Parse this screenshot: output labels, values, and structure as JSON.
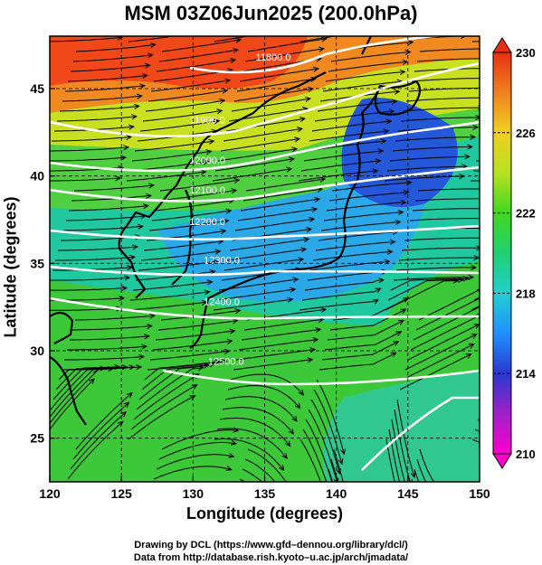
{
  "title": "MSM 03Z06Jun2025 (200.0hPa)",
  "xlabel": "Longitude (degrees)",
  "ylabel": "Latitude  (degrees)",
  "credits": {
    "line1": "Drawing by DCL (https://www.gfd–dennou.org/library/dcl/)",
    "line2": "Data from http://database.rish.kyoto–u.ac.jp/arch/jmadata/"
  },
  "colorbar": {
    "ticks": [
      "230",
      "226",
      "222",
      "218",
      "214",
      "210"
    ],
    "min": 210,
    "max": 230,
    "colors": [
      "#ff00cc",
      "#a020c8",
      "#2838d0",
      "#2090ff",
      "#20d0d0",
      "#20d070",
      "#40d820",
      "#b8e020",
      "#f0d020",
      "#f08020",
      "#e83010"
    ]
  },
  "chart_data": {
    "type": "map",
    "xlim": [
      120,
      150
    ],
    "ylim": [
      22.5,
      48
    ],
    "xticks": [
      "120",
      "125",
      "130",
      "135",
      "140",
      "145",
      "150"
    ],
    "yticks": [
      "25",
      "30",
      "35",
      "40",
      "45"
    ],
    "grid": true,
    "contour_labels": [
      "11800.0",
      "11900.0",
      "12000.0",
      "12100.0",
      "12200.0",
      "12300.0",
      "12400.0",
      "12500.0"
    ],
    "contour_label_positions": [
      {
        "lon": 135.6,
        "lat": 46.6
      },
      {
        "lon": 131.0,
        "lat": 43.0
      },
      {
        "lon": 131.0,
        "lat": 40.7
      },
      {
        "lon": 131.0,
        "lat": 39.0
      },
      {
        "lon": 131.0,
        "lat": 37.2
      },
      {
        "lon": 132.0,
        "lat": 35.0
      },
      {
        "lon": 132.0,
        "lat": 32.6
      },
      {
        "lon": 132.3,
        "lat": 29.2
      }
    ],
    "contour_unit": "m",
    "variable_shaded": "temperature",
    "vectors": "wind streamlines"
  }
}
